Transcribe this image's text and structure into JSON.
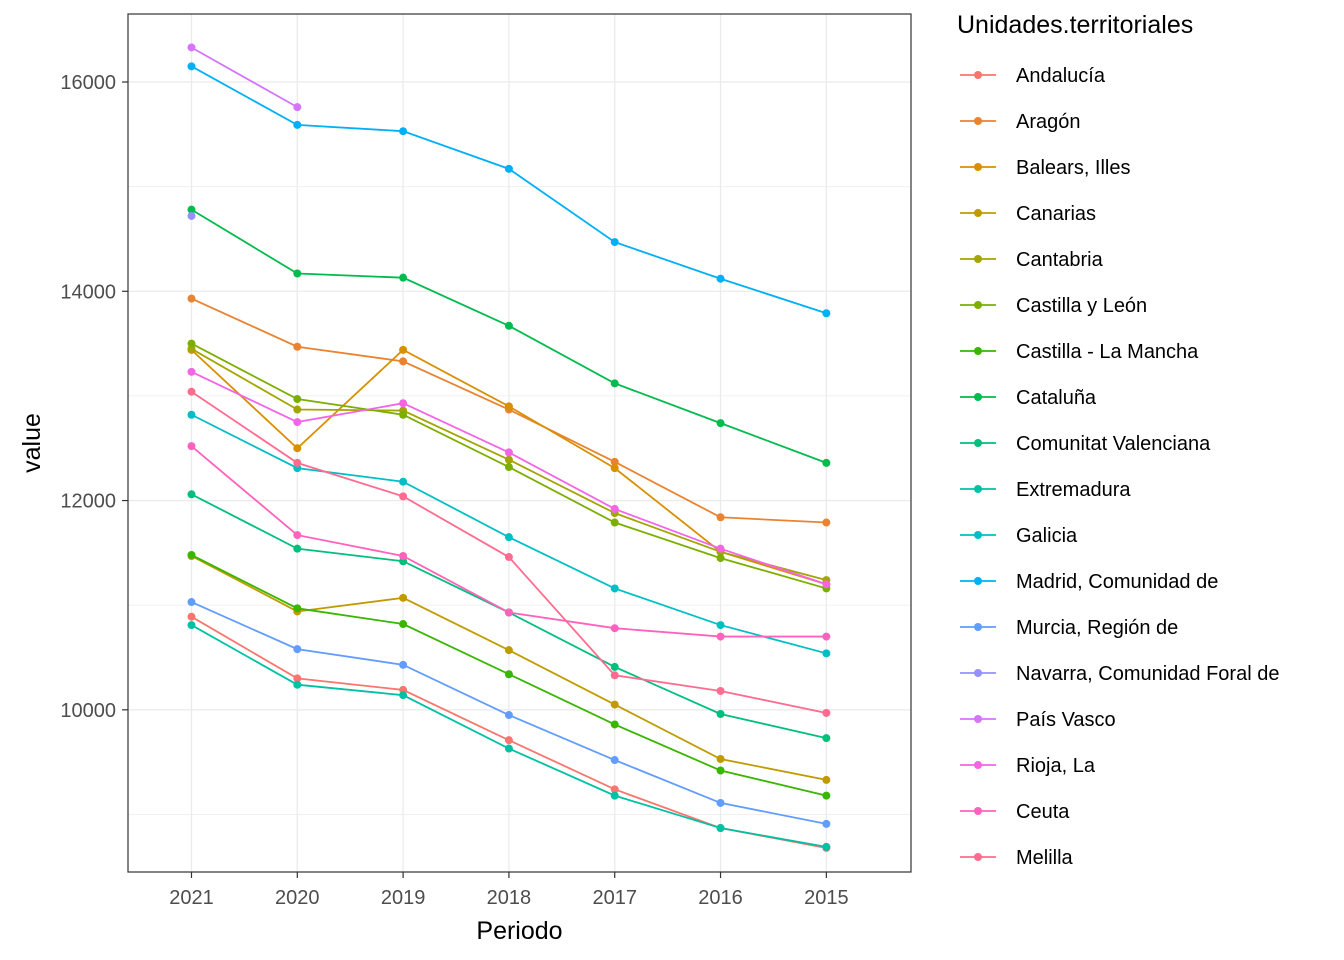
{
  "chart_data": {
    "type": "line",
    "xlabel": "Periodo",
    "ylabel": "value",
    "x": [
      "2021",
      "2020",
      "2019",
      "2018",
      "2017",
      "2016",
      "2015"
    ],
    "ylim": [
      8450,
      16650
    ],
    "y_ticks": [
      10000,
      12000,
      14000,
      16000
    ],
    "grid": true,
    "legend": {
      "title": "Unidades.territoriales",
      "position": "right"
    },
    "series": [
      {
        "name": "Andalucía",
        "color": "#F8766D",
        "values": [
          10890,
          10300,
          10190,
          9710,
          9240,
          8870,
          8680
        ]
      },
      {
        "name": "Aragón",
        "color": "#EA8331",
        "values": [
          13930,
          13470,
          13330,
          12870,
          12370,
          11840,
          11790
        ]
      },
      {
        "name": "Balears, Illes",
        "color": "#D89000",
        "values": [
          13440,
          12500,
          13440,
          12900,
          12310,
          11510,
          11200
        ]
      },
      {
        "name": "Canarias",
        "color": "#C09B00",
        "values": [
          11470,
          10940,
          11070,
          10570,
          10050,
          9530,
          9330
        ]
      },
      {
        "name": "Cantabria",
        "color": "#A3A500",
        "values": [
          13450,
          12870,
          12860,
          12390,
          11880,
          11510,
          11240
        ]
      },
      {
        "name": "Castilla y León",
        "color": "#7CAE00",
        "values": [
          13500,
          12970,
          12820,
          12320,
          11790,
          11450,
          11160
        ]
      },
      {
        "name": "Castilla - La Mancha",
        "color": "#39B600",
        "values": [
          11480,
          10970,
          10820,
          10340,
          9860,
          9420,
          9180
        ]
      },
      {
        "name": "Cataluña",
        "color": "#00BB4E",
        "values": [
          14780,
          14170,
          14130,
          13670,
          13120,
          12740,
          12360
        ]
      },
      {
        "name": "Comunitat Valenciana",
        "color": "#00BF7D",
        "values": [
          12060,
          11540,
          11420,
          10930,
          10410,
          9960,
          9730
        ]
      },
      {
        "name": "Extremadura",
        "color": "#00C1A3",
        "values": [
          10810,
          10240,
          10140,
          9630,
          9180,
          8870,
          8690
        ]
      },
      {
        "name": "Galicia",
        "color": "#00BFC4",
        "values": [
          12820,
          12310,
          12180,
          11650,
          11160,
          10810,
          10540
        ]
      },
      {
        "name": "Madrid, Comunidad de",
        "color": "#00B0F6",
        "values": [
          16150,
          15590,
          15530,
          15170,
          14470,
          14120,
          13790
        ]
      },
      {
        "name": "Murcia, Región de",
        "color": "#619CFF",
        "values": [
          11030,
          10580,
          10430,
          9950,
          9520,
          9110,
          8910
        ]
      },
      {
        "name": "Navarra, Comunidad Foral de",
        "color": "#9590FF",
        "values": [
          14720,
          null,
          null,
          null,
          null,
          null,
          null
        ]
      },
      {
        "name": "País Vasco",
        "color": "#D575FE",
        "values": [
          16330,
          15760,
          null,
          null,
          null,
          null,
          null
        ]
      },
      {
        "name": "Rioja, La",
        "color": "#F365E6",
        "values": [
          13230,
          12750,
          12930,
          12460,
          11920,
          11540,
          11200
        ]
      },
      {
        "name": "Ceuta",
        "color": "#FF62BC",
        "values": [
          12520,
          11670,
          11470,
          10930,
          10780,
          10700,
          10700
        ]
      },
      {
        "name": "Melilla",
        "color": "#FF6C90",
        "values": [
          13040,
          12360,
          12040,
          11460,
          10330,
          10180,
          9970
        ]
      }
    ]
  }
}
